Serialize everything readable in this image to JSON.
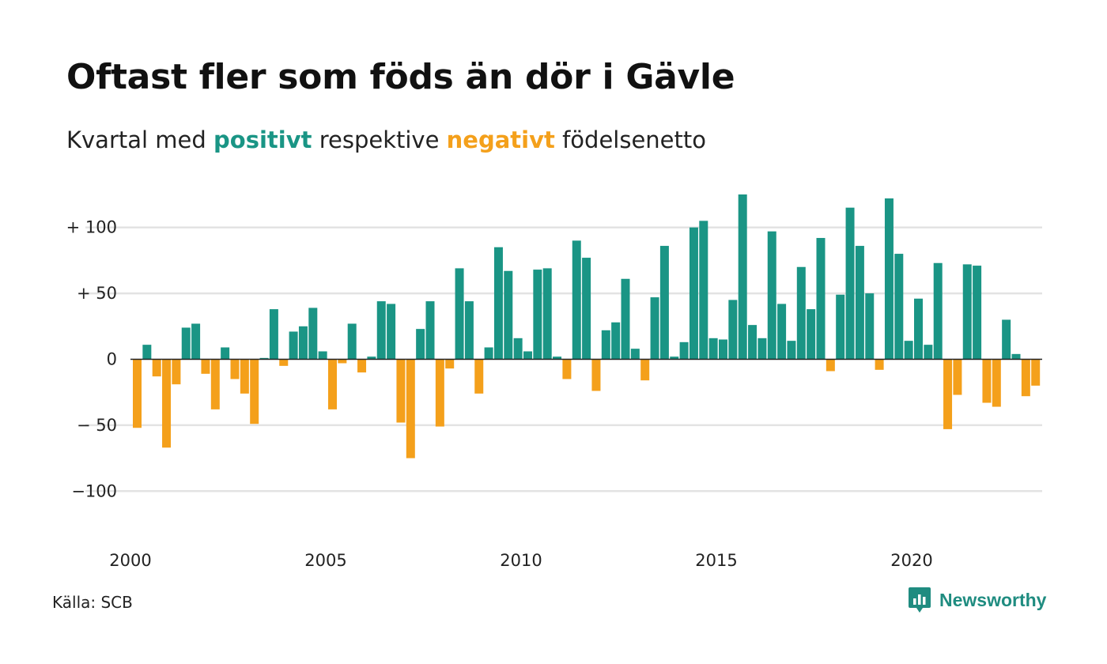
{
  "title": "Oftast fler som föds än dör i Gävle",
  "subtitle": {
    "prefix": "Kvartal med ",
    "positive": "positivt",
    "middle": " respektive ",
    "negative": "negativt",
    "suffix": " födelsenetto"
  },
  "source": "Källa: SCB",
  "brand": {
    "name": "Newsworthy",
    "icon": "newsworthy-logo-icon"
  },
  "colors": {
    "positive": "#1a9585",
    "negative": "#f4a01b",
    "grid": "#e3e3e3",
    "zero": "#222222"
  },
  "chart_data": {
    "type": "bar",
    "x_start": "2000 Q1",
    "x_step": "quarter",
    "xticks": [
      {
        "value": 2000,
        "label": "2000"
      },
      {
        "value": 2005,
        "label": "2005"
      },
      {
        "value": 2010,
        "label": "2010"
      },
      {
        "value": 2015,
        "label": "2015"
      },
      {
        "value": 2020,
        "label": "2020"
      }
    ],
    "yticks": [
      {
        "value": 100,
        "label": "+ 100"
      },
      {
        "value": 50,
        "label": "+  50"
      },
      {
        "value": 0,
        "label": "0"
      },
      {
        "value": -50,
        "label": "− 50"
      },
      {
        "value": -100,
        "label": "−100"
      }
    ],
    "ylim": [
      -130,
      128
    ],
    "grid": true,
    "values": [
      -52,
      11,
      -13,
      -67,
      -19,
      24,
      27,
      -11,
      -38,
      9,
      -15,
      -26,
      -49,
      1,
      38,
      -5,
      21,
      25,
      39,
      6,
      -38,
      -3,
      27,
      -10,
      2,
      44,
      42,
      -48,
      -75,
      23,
      44,
      -51,
      -7,
      69,
      44,
      -26,
      9,
      85,
      67,
      16,
      6,
      68,
      69,
      2,
      -15,
      90,
      77,
      -24,
      22,
      28,
      61,
      8,
      -16,
      47,
      86,
      2,
      13,
      100,
      105,
      16,
      15,
      45,
      125,
      26,
      16,
      97,
      42,
      14,
      70,
      38,
      92,
      -9,
      49,
      115,
      86,
      50,
      -8,
      122,
      80,
      14,
      46,
      11,
      73,
      -53,
      -27,
      72,
      71,
      -33,
      -36,
      30,
      4,
      -28,
      -20
    ]
  }
}
